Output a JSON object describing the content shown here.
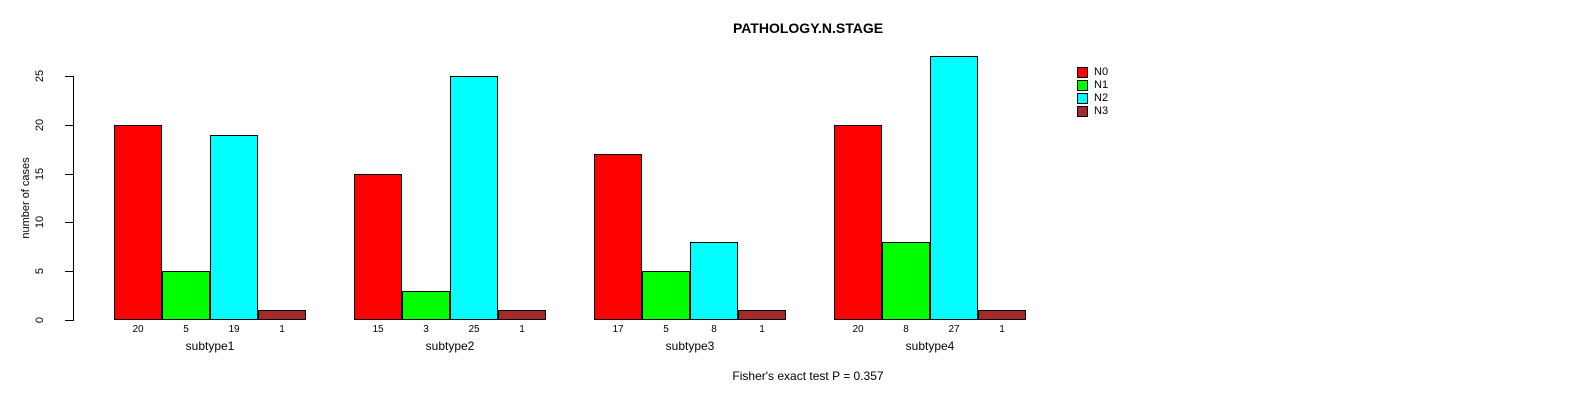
{
  "chart_data": {
    "type": "bar",
    "title": "PATHOLOGY.N.STAGE",
    "xlabel": "",
    "ylabel": "number of cases",
    "categories": [
      "subtype1",
      "subtype2",
      "subtype3",
      "subtype4"
    ],
    "series": [
      {
        "name": "N0",
        "color": "#FF0000",
        "values": [
          20,
          15,
          17,
          20
        ]
      },
      {
        "name": "N1",
        "color": "#00FF00",
        "values": [
          5,
          3,
          5,
          8
        ]
      },
      {
        "name": "N2",
        "color": "#00FFFF",
        "values": [
          19,
          25,
          8,
          27
        ]
      },
      {
        "name": "N3",
        "color": "#A52A2A",
        "values": [
          1,
          1,
          1,
          1
        ]
      }
    ],
    "ylim": [
      0,
      25
    ],
    "yticks": [
      0,
      5,
      10,
      15,
      20,
      25
    ],
    "grid": false,
    "legend_position": "right",
    "bar_value_labels_shown": true,
    "annotation": "Fisher's exact test P = 0.357",
    "background_color": "#FFFFFF",
    "bar_border_color": "#000000",
    "text_color": "#000000"
  }
}
